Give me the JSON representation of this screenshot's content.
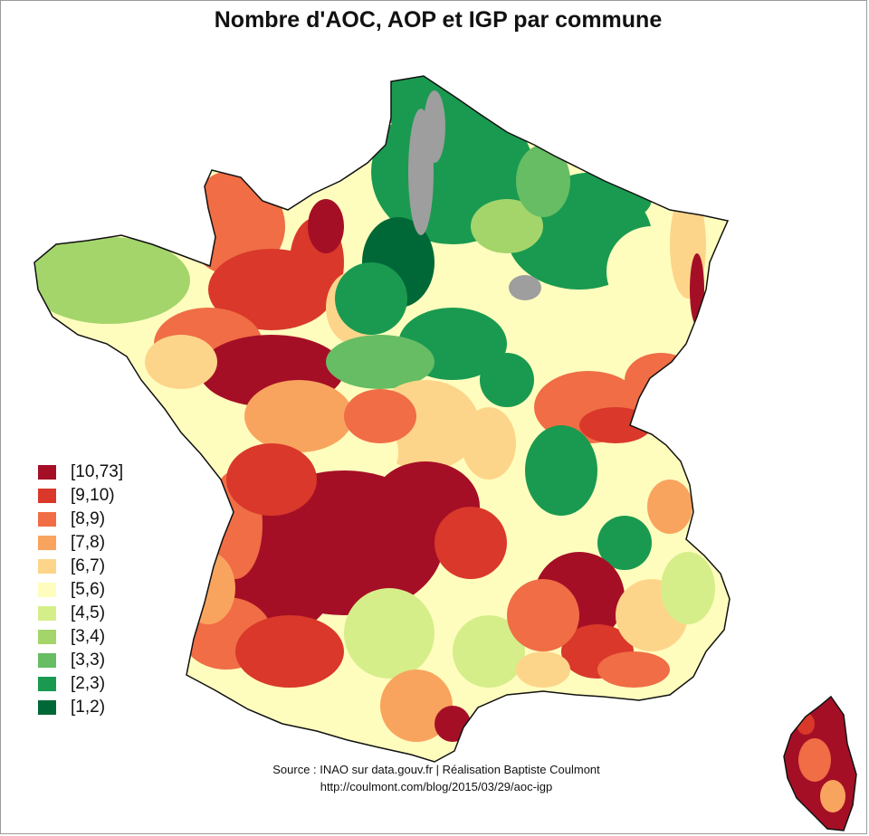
{
  "title": "Nombre d'AOC, AOP et IGP par commune",
  "legend": [
    {
      "label": "[10,73]",
      "color": "#a50f26"
    },
    {
      "label": "[9,10)",
      "color": "#d9382a"
    },
    {
      "label": "[8,9)",
      "color": "#f06d45"
    },
    {
      "label": "[7,8)",
      "color": "#f9a45e"
    },
    {
      "label": "[6,7)",
      "color": "#fdd58a"
    },
    {
      "label": "[5,6)",
      "color": "#fefdbe"
    },
    {
      "label": "[4,5)",
      "color": "#d5ee8a"
    },
    {
      "label": "[3,4)",
      "color": "#a4d56b"
    },
    {
      "label": "[3,3)",
      "color": "#67bd63"
    },
    {
      "label": "[2,3)",
      "color": "#1a9a50"
    },
    {
      "label": "[1,2)",
      "color": "#006837"
    }
  ],
  "no_data_color": "#9e9e9e",
  "source_line1": "Source : INAO sur data.gouv.fr | Réalisation Baptiste Coulmont",
  "source_line2": "http://coulmont.com/blog/2015/03/29/aoc-igp"
}
